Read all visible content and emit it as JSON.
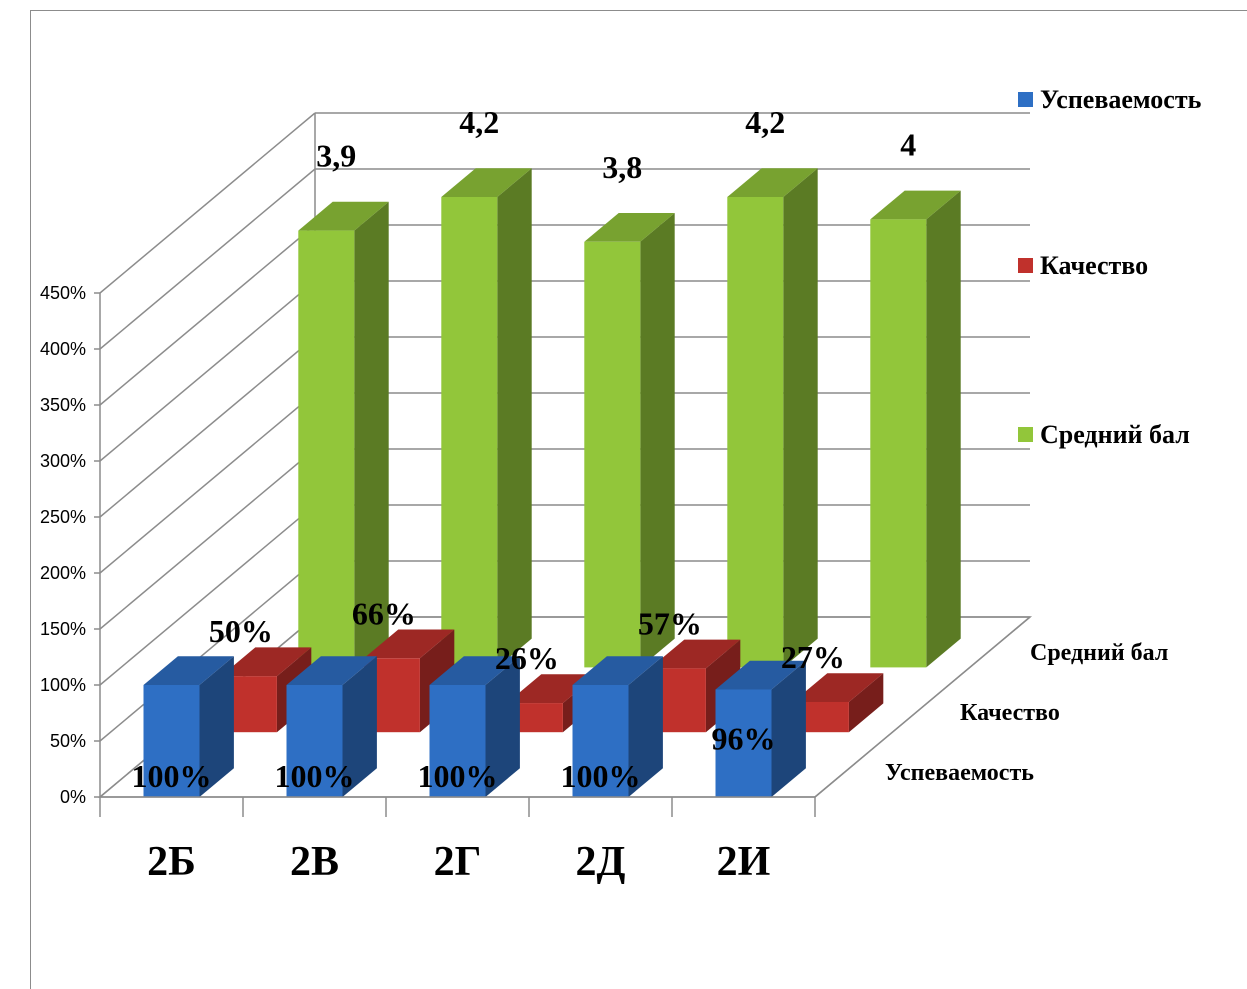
{
  "chart_data": {
    "type": "bar",
    "categories": [
      "2Б",
      "2В",
      "2Г",
      "2Д",
      "2И"
    ],
    "series": [
      {
        "name": "Успеваемость",
        "values": [
          100,
          100,
          100,
          100,
          96
        ],
        "labels": [
          "100%",
          "100%",
          "100%",
          "100%",
          "96%"
        ],
        "color": "#2e6fc4"
      },
      {
        "name": "Качество",
        "values": [
          50,
          66,
          26,
          57,
          27
        ],
        "labels": [
          "50%",
          "66%",
          "26%",
          "57%",
          "27%"
        ],
        "color": "#c0312c"
      },
      {
        "name": "Средний бал",
        "values": [
          390,
          420,
          380,
          420,
          400
        ],
        "labels": [
          "3,9",
          "4,2",
          "3,8",
          "4,2",
          "4"
        ],
        "color": "#92c63a"
      }
    ],
    "y_ticks": [
      "0%",
      "50%",
      "100%",
      "150%",
      "200%",
      "250%",
      "300%",
      "350%",
      "400%",
      "450%"
    ],
    "ylim": [
      0,
      450
    ],
    "depth_labels": [
      "Успеваемость",
      "Качество",
      "Средний бал"
    ],
    "legend": {
      "position": "right",
      "items": [
        {
          "label": "Успеваемость",
          "color": "#2e6fc4"
        },
        {
          "label": "Качество",
          "color": "#c0312c"
        },
        {
          "label": "Средний бал",
          "color": "#92c63a"
        }
      ]
    },
    "grid": true,
    "projection": "3d"
  }
}
